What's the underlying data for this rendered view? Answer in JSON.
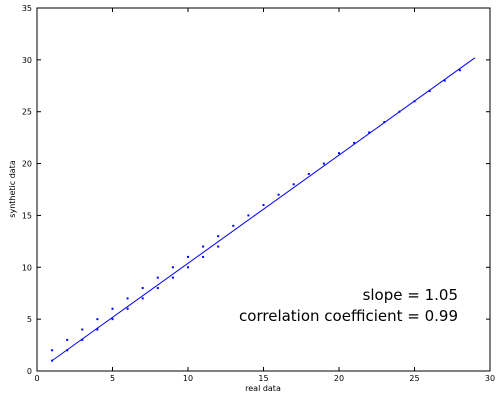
{
  "chart_data": {
    "type": "scatter",
    "xlabel": "real data",
    "ylabel": "synthetic data",
    "xlim": [
      0,
      30
    ],
    "ylim": [
      0,
      35
    ],
    "xticks": [
      "0",
      "5",
      "10",
      "15",
      "20",
      "25",
      "30"
    ],
    "yticks": [
      "0",
      "5",
      "10",
      "15",
      "20",
      "25",
      "30",
      "35"
    ],
    "grid": false,
    "marker_color": "#0000ff",
    "line_color": "#0000ff",
    "points": [
      [
        1,
        1
      ],
      [
        1,
        2
      ],
      [
        2,
        2
      ],
      [
        2,
        3
      ],
      [
        3,
        3
      ],
      [
        3,
        4
      ],
      [
        4,
        4
      ],
      [
        4,
        5
      ],
      [
        5,
        5
      ],
      [
        5,
        6
      ],
      [
        6,
        6
      ],
      [
        6,
        7
      ],
      [
        7,
        7
      ],
      [
        7,
        8
      ],
      [
        8,
        8
      ],
      [
        8,
        9
      ],
      [
        9,
        9
      ],
      [
        9,
        10
      ],
      [
        10,
        10
      ],
      [
        10,
        11
      ],
      [
        11,
        11
      ],
      [
        11,
        12
      ],
      [
        12,
        12
      ],
      [
        12,
        13
      ],
      [
        13,
        14
      ],
      [
        14,
        15
      ],
      [
        15,
        16
      ],
      [
        16,
        17
      ],
      [
        17,
        18
      ],
      [
        18,
        19
      ],
      [
        19,
        20
      ],
      [
        20,
        21
      ],
      [
        21,
        22
      ],
      [
        22,
        23
      ],
      [
        23,
        24
      ],
      [
        24,
        25
      ],
      [
        25,
        26
      ],
      [
        26,
        27
      ],
      [
        27,
        28
      ],
      [
        28,
        29
      ]
    ],
    "fit_line": {
      "x": [
        1,
        29
      ],
      "y": [
        1.0,
        30.2
      ]
    },
    "annotations": {
      "slope": "slope =  1.05",
      "correlation": "correlation coefficient =  0.99"
    }
  }
}
